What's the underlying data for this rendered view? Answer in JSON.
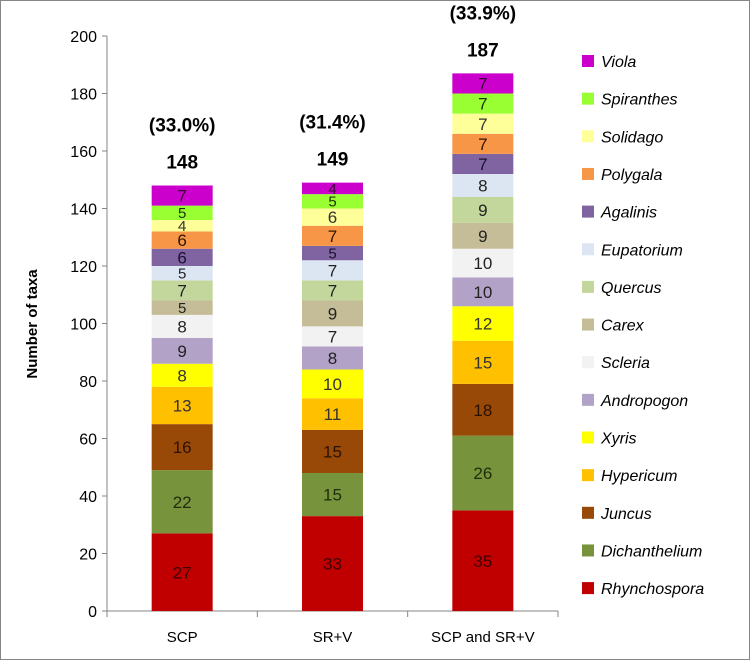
{
  "chart_data": {
    "type": "bar",
    "stacked": true,
    "title": "",
    "xlabel": "",
    "ylabel": "Number of taxa",
    "ylim": [
      0,
      200
    ],
    "yticks": [
      0,
      20,
      40,
      60,
      80,
      100,
      120,
      140,
      160,
      180,
      200
    ],
    "categories": [
      "SCP",
      "SR+V",
      "SCP and SR+V"
    ],
    "totals": [
      "148",
      "149",
      "187"
    ],
    "percents": [
      "(33.0%)",
      "(31.4%)",
      "(33.9%)"
    ],
    "series": [
      {
        "name": "Rhynchospora",
        "color": "#c00000",
        "label_color": "#3d0000",
        "values": [
          27,
          33,
          35
        ]
      },
      {
        "name": "Dichanthelium",
        "color": "#77933c",
        "label_color": "#1f2d0a",
        "values": [
          22,
          15,
          26
        ]
      },
      {
        "name": "Juncus",
        "color": "#984807",
        "label_color": "#2b1200",
        "values": [
          16,
          15,
          18
        ]
      },
      {
        "name": "Hypericum",
        "color": "#ffc000",
        "label_color": "#333333",
        "values": [
          13,
          11,
          15
        ]
      },
      {
        "name": "Xyris",
        "color": "#ffff00",
        "label_color": "#333333",
        "values": [
          8,
          10,
          12
        ]
      },
      {
        "name": "Andropogon",
        "color": "#b3a2c7",
        "label_color": "#222222",
        "values": [
          9,
          8,
          10
        ]
      },
      {
        "name": "Scleria",
        "color": "#f2f2f2",
        "label_color": "#222222",
        "values": [
          8,
          7,
          10
        ]
      },
      {
        "name": "Carex",
        "color": "#c4bd97",
        "label_color": "#222222",
        "values": [
          5,
          9,
          9
        ]
      },
      {
        "name": "Quercus",
        "color": "#c3d69b",
        "label_color": "#222222",
        "values": [
          7,
          7,
          9
        ]
      },
      {
        "name": "Eupatorium",
        "color": "#dce6f2",
        "label_color": "#222222",
        "values": [
          5,
          7,
          8
        ]
      },
      {
        "name": "Agalinis",
        "color": "#8064a2",
        "label_color": "#1a1030",
        "values": [
          6,
          5,
          7
        ]
      },
      {
        "name": "Polygala",
        "color": "#f79646",
        "label_color": "#331500",
        "values": [
          6,
          7,
          7
        ]
      },
      {
        "name": "Solidago",
        "color": "#ffff99",
        "label_color": "#333333",
        "values": [
          4,
          6,
          7
        ]
      },
      {
        "name": "Spiranthes",
        "color": "#99ff33",
        "label_color": "#1a3300",
        "values": [
          5,
          5,
          7
        ]
      },
      {
        "name": "Viola",
        "color": "#cc00cc",
        "label_color": "#330033",
        "values": [
          7,
          4,
          7
        ]
      }
    ],
    "legend_position": "right",
    "grid": false
  }
}
